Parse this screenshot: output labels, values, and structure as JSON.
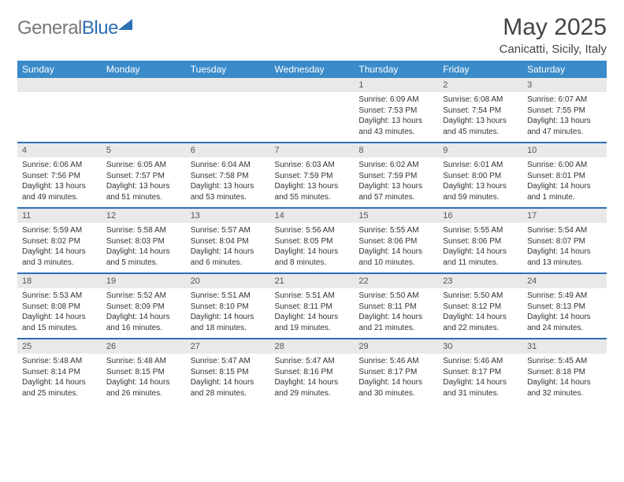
{
  "brand": {
    "part1": "General",
    "part2": "Blue"
  },
  "header": {
    "month": "May 2025",
    "location": "Canicatti, Sicily, Italy"
  },
  "calendar": {
    "day_headers": [
      "Sunday",
      "Monday",
      "Tuesday",
      "Wednesday",
      "Thursday",
      "Friday",
      "Saturday"
    ],
    "header_bg": "#3a8bc9",
    "header_fg": "#ffffff",
    "row_divider_color": "#2d6fb3",
    "daynum_bg": "#e9e9e9",
    "weeks": [
      [
        null,
        null,
        null,
        null,
        {
          "n": "1",
          "sunrise": "Sunrise: 6:09 AM",
          "sunset": "Sunset: 7:53 PM",
          "daylight": "Daylight: 13 hours and 43 minutes."
        },
        {
          "n": "2",
          "sunrise": "Sunrise: 6:08 AM",
          "sunset": "Sunset: 7:54 PM",
          "daylight": "Daylight: 13 hours and 45 minutes."
        },
        {
          "n": "3",
          "sunrise": "Sunrise: 6:07 AM",
          "sunset": "Sunset: 7:55 PM",
          "daylight": "Daylight: 13 hours and 47 minutes."
        }
      ],
      [
        {
          "n": "4",
          "sunrise": "Sunrise: 6:06 AM",
          "sunset": "Sunset: 7:56 PM",
          "daylight": "Daylight: 13 hours and 49 minutes."
        },
        {
          "n": "5",
          "sunrise": "Sunrise: 6:05 AM",
          "sunset": "Sunset: 7:57 PM",
          "daylight": "Daylight: 13 hours and 51 minutes."
        },
        {
          "n": "6",
          "sunrise": "Sunrise: 6:04 AM",
          "sunset": "Sunset: 7:58 PM",
          "daylight": "Daylight: 13 hours and 53 minutes."
        },
        {
          "n": "7",
          "sunrise": "Sunrise: 6:03 AM",
          "sunset": "Sunset: 7:59 PM",
          "daylight": "Daylight: 13 hours and 55 minutes."
        },
        {
          "n": "8",
          "sunrise": "Sunrise: 6:02 AM",
          "sunset": "Sunset: 7:59 PM",
          "daylight": "Daylight: 13 hours and 57 minutes."
        },
        {
          "n": "9",
          "sunrise": "Sunrise: 6:01 AM",
          "sunset": "Sunset: 8:00 PM",
          "daylight": "Daylight: 13 hours and 59 minutes."
        },
        {
          "n": "10",
          "sunrise": "Sunrise: 6:00 AM",
          "sunset": "Sunset: 8:01 PM",
          "daylight": "Daylight: 14 hours and 1 minute."
        }
      ],
      [
        {
          "n": "11",
          "sunrise": "Sunrise: 5:59 AM",
          "sunset": "Sunset: 8:02 PM",
          "daylight": "Daylight: 14 hours and 3 minutes."
        },
        {
          "n": "12",
          "sunrise": "Sunrise: 5:58 AM",
          "sunset": "Sunset: 8:03 PM",
          "daylight": "Daylight: 14 hours and 5 minutes."
        },
        {
          "n": "13",
          "sunrise": "Sunrise: 5:57 AM",
          "sunset": "Sunset: 8:04 PM",
          "daylight": "Daylight: 14 hours and 6 minutes."
        },
        {
          "n": "14",
          "sunrise": "Sunrise: 5:56 AM",
          "sunset": "Sunset: 8:05 PM",
          "daylight": "Daylight: 14 hours and 8 minutes."
        },
        {
          "n": "15",
          "sunrise": "Sunrise: 5:55 AM",
          "sunset": "Sunset: 8:06 PM",
          "daylight": "Daylight: 14 hours and 10 minutes."
        },
        {
          "n": "16",
          "sunrise": "Sunrise: 5:55 AM",
          "sunset": "Sunset: 8:06 PM",
          "daylight": "Daylight: 14 hours and 11 minutes."
        },
        {
          "n": "17",
          "sunrise": "Sunrise: 5:54 AM",
          "sunset": "Sunset: 8:07 PM",
          "daylight": "Daylight: 14 hours and 13 minutes."
        }
      ],
      [
        {
          "n": "18",
          "sunrise": "Sunrise: 5:53 AM",
          "sunset": "Sunset: 8:08 PM",
          "daylight": "Daylight: 14 hours and 15 minutes."
        },
        {
          "n": "19",
          "sunrise": "Sunrise: 5:52 AM",
          "sunset": "Sunset: 8:09 PM",
          "daylight": "Daylight: 14 hours and 16 minutes."
        },
        {
          "n": "20",
          "sunrise": "Sunrise: 5:51 AM",
          "sunset": "Sunset: 8:10 PM",
          "daylight": "Daylight: 14 hours and 18 minutes."
        },
        {
          "n": "21",
          "sunrise": "Sunrise: 5:51 AM",
          "sunset": "Sunset: 8:11 PM",
          "daylight": "Daylight: 14 hours and 19 minutes."
        },
        {
          "n": "22",
          "sunrise": "Sunrise: 5:50 AM",
          "sunset": "Sunset: 8:11 PM",
          "daylight": "Daylight: 14 hours and 21 minutes."
        },
        {
          "n": "23",
          "sunrise": "Sunrise: 5:50 AM",
          "sunset": "Sunset: 8:12 PM",
          "daylight": "Daylight: 14 hours and 22 minutes."
        },
        {
          "n": "24",
          "sunrise": "Sunrise: 5:49 AM",
          "sunset": "Sunset: 8:13 PM",
          "daylight": "Daylight: 14 hours and 24 minutes."
        }
      ],
      [
        {
          "n": "25",
          "sunrise": "Sunrise: 5:48 AM",
          "sunset": "Sunset: 8:14 PM",
          "daylight": "Daylight: 14 hours and 25 minutes."
        },
        {
          "n": "26",
          "sunrise": "Sunrise: 5:48 AM",
          "sunset": "Sunset: 8:15 PM",
          "daylight": "Daylight: 14 hours and 26 minutes."
        },
        {
          "n": "27",
          "sunrise": "Sunrise: 5:47 AM",
          "sunset": "Sunset: 8:15 PM",
          "daylight": "Daylight: 14 hours and 28 minutes."
        },
        {
          "n": "28",
          "sunrise": "Sunrise: 5:47 AM",
          "sunset": "Sunset: 8:16 PM",
          "daylight": "Daylight: 14 hours and 29 minutes."
        },
        {
          "n": "29",
          "sunrise": "Sunrise: 5:46 AM",
          "sunset": "Sunset: 8:17 PM",
          "daylight": "Daylight: 14 hours and 30 minutes."
        },
        {
          "n": "30",
          "sunrise": "Sunrise: 5:46 AM",
          "sunset": "Sunset: 8:17 PM",
          "daylight": "Daylight: 14 hours and 31 minutes."
        },
        {
          "n": "31",
          "sunrise": "Sunrise: 5:45 AM",
          "sunset": "Sunset: 8:18 PM",
          "daylight": "Daylight: 14 hours and 32 minutes."
        }
      ]
    ]
  }
}
